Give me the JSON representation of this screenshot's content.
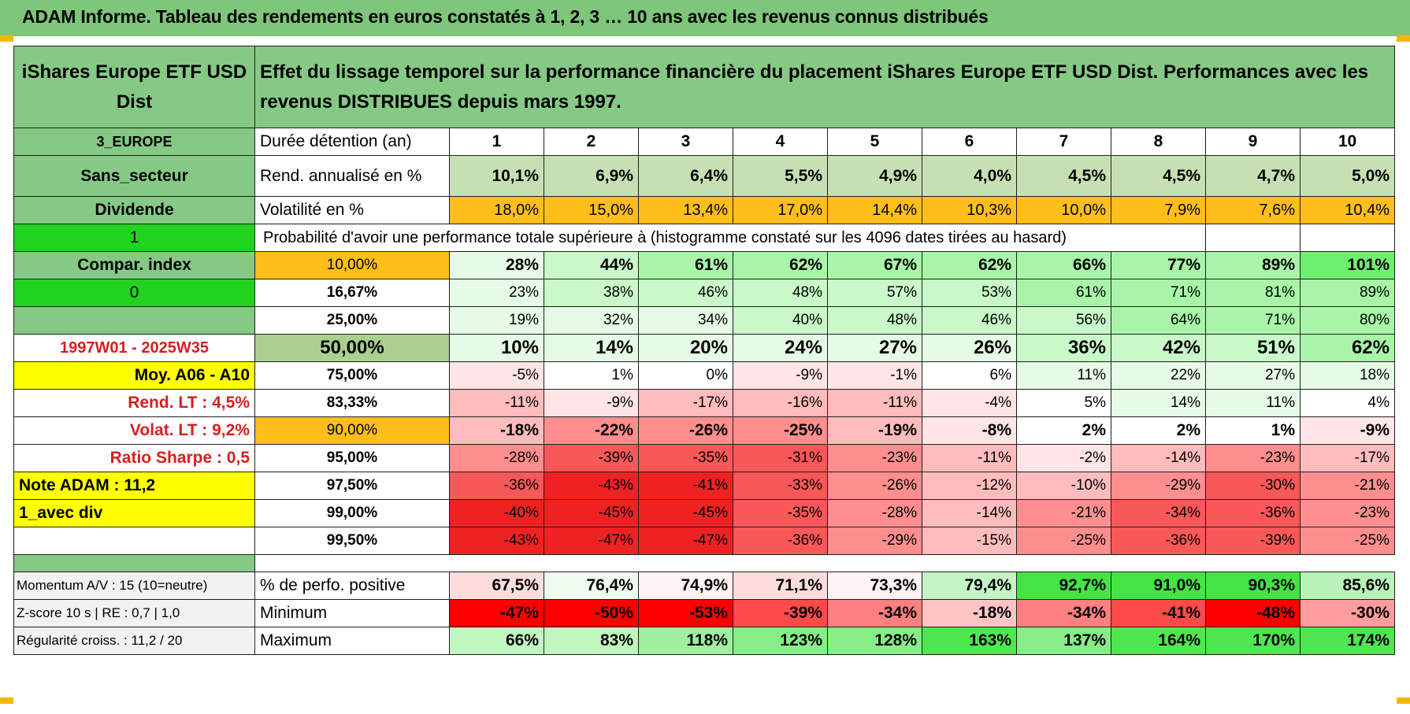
{
  "header": {
    "title": "ADAM Informe. Tableau des rendements en euros constatés à 1, 2, 3 … 10 ans avec les revenus connus distribués"
  },
  "fund": {
    "name": "iShares Europe ETF USD Dist",
    "description": "Effet du lissage temporel sur la performance financière du placement iShares Europe ETF USD Dist. Performances avec les revenus DISTRIBUES depuis mars 1997."
  },
  "side": {
    "region": "3_EUROPE",
    "sector": "Sans_secteur",
    "income": "Dividende",
    "flag1": "1",
    "compar": "Compar. index",
    "flag0": "0",
    "blank": "",
    "period": "1997W01 - 2025W35",
    "moy": "Moy. A06 - A10",
    "rend_lt": "Rend. LT :   4,5%",
    "volat_lt": "Volat. LT :   9,2%",
    "sharpe": "Ratio Sharpe :    0,5",
    "note": "Note ADAM : 11,2",
    "avec_div": "1_avec div",
    "momentum": "Momentum A/V : 15 (10=neutre)",
    "zscore": "Z-score 10 s | RE : 0,7 | 1,0",
    "regularite": "Régularité croiss. : 11,2 / 20"
  },
  "labels": {
    "duree": "Durée détention (an)",
    "rend": "Rend. annualisé en %",
    "volat": "Volatilité en %",
    "proba": "Probabilité d'avoir une performance totale supérieure à (histogramme constaté sur les 4096 dates tirées au hasard)",
    "perf_pos": "% de perfo. positive",
    "minimum": "Minimum",
    "maximum": "Maximum"
  },
  "years": [
    "1",
    "2",
    "3",
    "4",
    "5",
    "6",
    "7",
    "8",
    "9",
    "10"
  ],
  "rend": [
    "10,1%",
    "6,9%",
    "6,4%",
    "5,5%",
    "4,9%",
    "4,0%",
    "4,5%",
    "4,5%",
    "4,7%",
    "5,0%"
  ],
  "volat": [
    "18,0%",
    "15,0%",
    "13,4%",
    "17,0%",
    "14,4%",
    "10,3%",
    "10,0%",
    "7,9%",
    "7,6%",
    "10,4%"
  ],
  "quantiles": [
    {
      "label": "10,00%",
      "values": [
        "28%",
        "44%",
        "61%",
        "62%",
        "67%",
        "62%",
        "66%",
        "77%",
        "89%",
        "101%"
      ]
    },
    {
      "label": "16,67%",
      "values": [
        "23%",
        "38%",
        "46%",
        "48%",
        "57%",
        "53%",
        "61%",
        "71%",
        "81%",
        "89%"
      ]
    },
    {
      "label": "25,00%",
      "values": [
        "19%",
        "32%",
        "34%",
        "40%",
        "48%",
        "46%",
        "56%",
        "64%",
        "71%",
        "80%"
      ]
    },
    {
      "label": "50,00%",
      "values": [
        "10%",
        "14%",
        "20%",
        "24%",
        "27%",
        "26%",
        "36%",
        "42%",
        "51%",
        "62%"
      ]
    },
    {
      "label": "75,00%",
      "values": [
        "-5%",
        "1%",
        "0%",
        "-9%",
        "-1%",
        "6%",
        "11%",
        "22%",
        "27%",
        "18%"
      ]
    },
    {
      "label": "83,33%",
      "values": [
        "-11%",
        "-9%",
        "-17%",
        "-16%",
        "-11%",
        "-4%",
        "5%",
        "14%",
        "11%",
        "4%"
      ]
    },
    {
      "label": "90,00%",
      "values": [
        "-18%",
        "-22%",
        "-26%",
        "-25%",
        "-19%",
        "-8%",
        "2%",
        "2%",
        "1%",
        "-9%"
      ]
    },
    {
      "label": "95,00%",
      "values": [
        "-28%",
        "-39%",
        "-35%",
        "-31%",
        "-23%",
        "-11%",
        "-2%",
        "-14%",
        "-23%",
        "-17%"
      ]
    },
    {
      "label": "97,50%",
      "values": [
        "-36%",
        "-43%",
        "-41%",
        "-33%",
        "-26%",
        "-12%",
        "-10%",
        "-29%",
        "-30%",
        "-21%"
      ]
    },
    {
      "label": "99,00%",
      "values": [
        "-40%",
        "-45%",
        "-45%",
        "-35%",
        "-28%",
        "-14%",
        "-21%",
        "-34%",
        "-36%",
        "-23%"
      ]
    },
    {
      "label": "99,50%",
      "values": [
        "-43%",
        "-47%",
        "-47%",
        "-36%",
        "-29%",
        "-15%",
        "-25%",
        "-36%",
        "-39%",
        "-25%"
      ]
    }
  ],
  "perf_pos": [
    "67,5%",
    "76,4%",
    "74,9%",
    "71,1%",
    "73,3%",
    "79,4%",
    "92,7%",
    "91,0%",
    "90,3%",
    "85,6%"
  ],
  "minimum": [
    "-47%",
    "-50%",
    "-53%",
    "-39%",
    "-34%",
    "-18%",
    "-34%",
    "-41%",
    "-48%",
    "-30%"
  ],
  "maximum": [
    "66%",
    "83%",
    "118%",
    "123%",
    "128%",
    "163%",
    "137%",
    "164%",
    "170%",
    "174%"
  ],
  "colors": {
    "header_green": "#85c985",
    "bright_green": "#1fd31f",
    "yellow": "#ffff00",
    "orange": "#ffbe1a",
    "light_green_rend": "#c6e0b4",
    "median_green": "#a9d08e",
    "red_text": "#d81e1e"
  }
}
